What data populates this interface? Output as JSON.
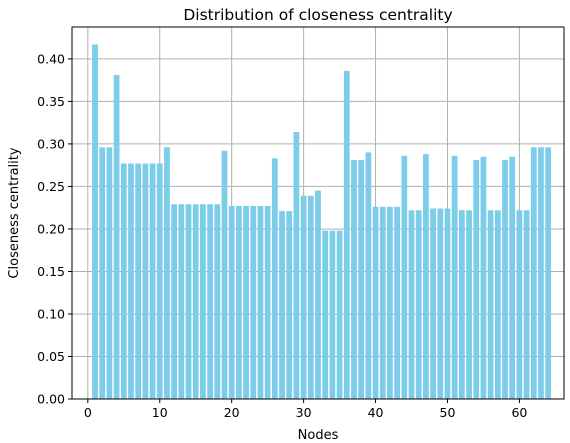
{
  "chart_data": {
    "type": "bar",
    "title": "Distribution of closeness centrality",
    "xlabel": "Nodes",
    "ylabel": "Closeness centrality",
    "xlim": [
      -2.2,
      66.2
    ],
    "ylim": [
      0,
      0.4375
    ],
    "grid": true,
    "bar_color": "#7ccde9",
    "x_ticks": [
      0,
      10,
      20,
      30,
      40,
      50,
      60
    ],
    "y_ticks": [
      0.0,
      0.05,
      0.1,
      0.15,
      0.2,
      0.25,
      0.3,
      0.35,
      0.4
    ],
    "y_tick_labels": [
      "0.00",
      "0.05",
      "0.10",
      "0.15",
      "0.20",
      "0.25",
      "0.30",
      "0.35",
      "0.40"
    ],
    "x": [
      1,
      2,
      3,
      4,
      5,
      6,
      7,
      8,
      9,
      10,
      11,
      12,
      13,
      14,
      15,
      16,
      17,
      18,
      19,
      20,
      21,
      22,
      23,
      24,
      25,
      26,
      27,
      28,
      29,
      30,
      31,
      32,
      33,
      34,
      35,
      36,
      37,
      38,
      39,
      40,
      41,
      42,
      43,
      44,
      45,
      46,
      47,
      48,
      49,
      50,
      51,
      52,
      53,
      54,
      55,
      56,
      57,
      58,
      59,
      60,
      61,
      62,
      63,
      64
    ],
    "values": [
      0.417,
      0.296,
      0.296,
      0.381,
      0.277,
      0.277,
      0.277,
      0.277,
      0.277,
      0.277,
      0.296,
      0.229,
      0.229,
      0.229,
      0.229,
      0.229,
      0.229,
      0.229,
      0.292,
      0.227,
      0.227,
      0.227,
      0.227,
      0.227,
      0.227,
      0.283,
      0.221,
      0.221,
      0.314,
      0.239,
      0.239,
      0.245,
      0.198,
      0.198,
      0.198,
      0.386,
      0.281,
      0.281,
      0.29,
      0.226,
      0.226,
      0.226,
      0.226,
      0.286,
      0.222,
      0.222,
      0.288,
      0.224,
      0.224,
      0.224,
      0.286,
      0.222,
      0.222,
      0.281,
      0.285,
      0.222,
      0.222,
      0.281,
      0.285,
      0.222,
      0.222,
      0.296,
      0.296,
      0.296
    ]
  }
}
